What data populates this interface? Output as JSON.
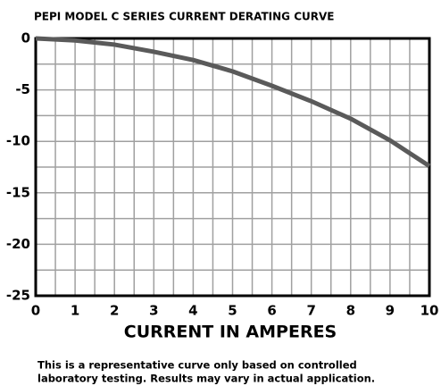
{
  "chart_data": {
    "type": "line",
    "title": "PEPI MODEL C SERIES CURRENT DERATING CURVE",
    "x_label": "CURRENT IN AMPERES",
    "annotations": [
      "This is a representative curve only based on controlled",
      "laboratory testing. Results may vary in actual application."
    ],
    "x": [
      0,
      1,
      2,
      3,
      4,
      5,
      6,
      7,
      8,
      9,
      10
    ],
    "series": [
      {
        "name": "Derating",
        "color": "#5a5a5a",
        "values": [
          0,
          -0.2,
          -0.6,
          -1.3,
          -2.1,
          -3.2,
          -4.6,
          -6.1,
          -7.8,
          -9.9,
          -12.4
        ]
      }
    ],
    "xlim": [
      0,
      10
    ],
    "xticks": [
      0,
      1,
      2,
      3,
      4,
      5,
      6,
      7,
      8,
      9,
      10
    ],
    "ylim": [
      -25,
      0
    ],
    "yticks": [
      0,
      -5,
      -10,
      -15,
      -20,
      -25
    ],
    "grid": true
  }
}
